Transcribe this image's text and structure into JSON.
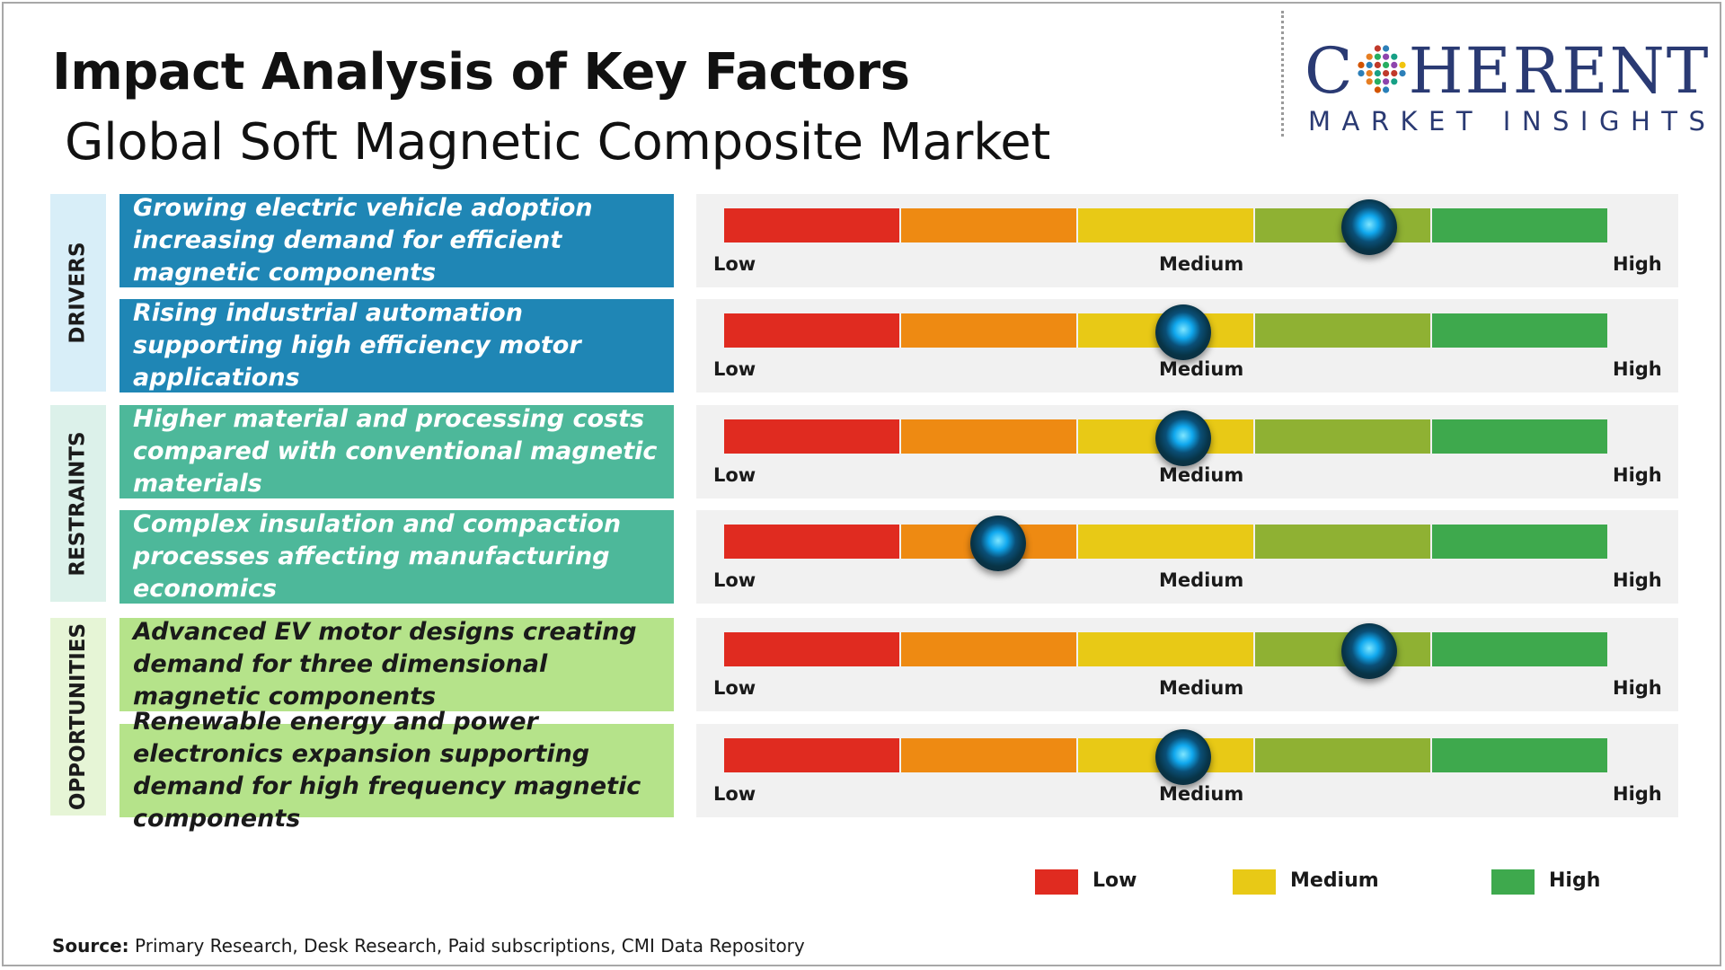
{
  "title": "Impact Analysis of Key Factors",
  "subtitle": "Global Soft Magnetic Composite Market",
  "logo": {
    "top": "COHERENT",
    "top_prefix": "C",
    "top_suffix": "HERENT",
    "bottom": "MARKET INSIGHTS"
  },
  "colors": {
    "drivers_box": "#1f86b5",
    "restraints_box": "#4db89a",
    "opportunities_box": "#b5e38a",
    "drivers_tab": "#d8eef8",
    "restraints_tab": "#dcf1ea",
    "opportunities_tab": "#e6f5d6",
    "scale": [
      "#e02b20",
      "#ee8a12",
      "#e8c916",
      "#8fb133",
      "#3ea94d"
    ]
  },
  "scale_labels": {
    "low": "Low",
    "medium": "Medium",
    "high": "High"
  },
  "chart_data": {
    "type": "gauge",
    "scale": [
      "Low",
      "Medium",
      "High"
    ],
    "categories": [
      {
        "name": "DRIVERS",
        "factors": [
          {
            "text": "Growing electric vehicle adoption increasing demand for efficient magnetic components",
            "impact": 0.73
          },
          {
            "text": "Rising industrial automation supporting high efficiency motor applications",
            "impact": 0.52
          }
        ]
      },
      {
        "name": "RESTRAINTS",
        "factors": [
          {
            "text": "Higher material and processing costs compared with conventional magnetic materials",
            "impact": 0.52
          },
          {
            "text": "Complex insulation and compaction processes affecting manufacturing economics",
            "impact": 0.31
          }
        ]
      },
      {
        "name": "OPPORTUNITIES",
        "factors": [
          {
            "text": "Advanced EV motor designs creating demand for three dimensional magnetic components",
            "impact": 0.73
          },
          {
            "text": "Renewable energy and power electronics expansion supporting demand for high frequency magnetic components",
            "impact": 0.52
          }
        ]
      }
    ]
  },
  "legend": [
    {
      "label": "Low",
      "color": "#e02b20"
    },
    {
      "label": "Medium",
      "color": "#e8c916"
    },
    {
      "label": "High",
      "color": "#3ea94d"
    }
  ],
  "source": {
    "label": "Source:",
    "text": " Primary Research, Desk Research, Paid subscriptions, CMI Data Repository"
  }
}
